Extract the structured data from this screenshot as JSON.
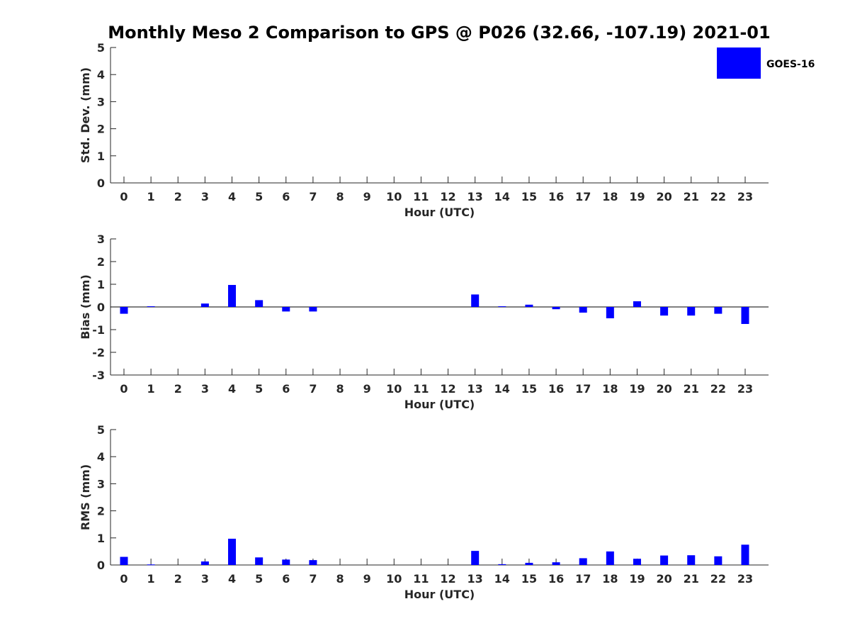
{
  "chart_data": {
    "title": "Monthly Meso 2 Comparison to GPS @ P026 (32.66, -107.19) 2021-01",
    "legend": {
      "label": "GOES-16",
      "color": "#0000ff",
      "placement": "top-right"
    },
    "bar_color": "#0000ff",
    "categories": [
      "0",
      "1",
      "2",
      "3",
      "4",
      "5",
      "6",
      "7",
      "8",
      "9",
      "10",
      "11",
      "12",
      "13",
      "14",
      "15",
      "16",
      "17",
      "18",
      "19",
      "20",
      "21",
      "22",
      "23"
    ],
    "panels": [
      {
        "type": "bar",
        "name": "std_dev",
        "xlabel": "Hour (UTC)",
        "ylabel": "Std. Dev. (mm)",
        "ylim": [
          0,
          5
        ],
        "yticks": [
          0,
          1,
          2,
          3,
          4,
          5
        ],
        "values": [
          0,
          0,
          0,
          0,
          0,
          0,
          0,
          0,
          0,
          0,
          0,
          0,
          0,
          0,
          0,
          0,
          0,
          0,
          0,
          0,
          0,
          0,
          0,
          0
        ]
      },
      {
        "type": "bar",
        "name": "bias",
        "xlabel": "Hour (UTC)",
        "ylabel": "Bias (mm)",
        "ylim": [
          -3,
          3
        ],
        "yticks": [
          -3,
          -2,
          -1,
          0,
          1,
          2,
          3
        ],
        "values": [
          -0.3,
          0.03,
          0,
          0.15,
          0.97,
          0.3,
          -0.2,
          -0.2,
          0,
          0,
          0,
          0,
          0,
          0.55,
          0.03,
          0.1,
          -0.1,
          -0.25,
          -0.5,
          0.25,
          -0.38,
          -0.38,
          -0.3,
          -0.75
        ]
      },
      {
        "type": "bar",
        "name": "rms",
        "xlabel": "Hour (UTC)",
        "ylabel": "RMS (mm)",
        "ylim": [
          0,
          5
        ],
        "yticks": [
          0,
          1,
          2,
          3,
          4,
          5
        ],
        "values": [
          0.3,
          0.02,
          0,
          0.13,
          0.97,
          0.28,
          0.2,
          0.18,
          0,
          0,
          0,
          0,
          0,
          0.52,
          0.03,
          0.08,
          0.1,
          0.25,
          0.5,
          0.23,
          0.35,
          0.36,
          0.32,
          0.75
        ]
      }
    ]
  }
}
